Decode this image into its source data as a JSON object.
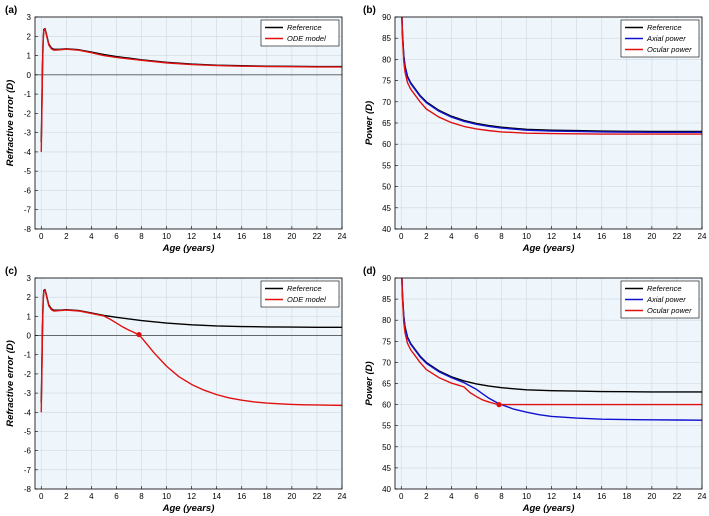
{
  "colors": {
    "plot_bg": "#eef6fc",
    "grid": "#cfd8e0",
    "reference": "#000000",
    "ode_model": "#e01010",
    "axial_power": "#1010d0",
    "ocular_power": "#e01010",
    "marker": "#e01010"
  },
  "chart_data": [
    {
      "id": "a",
      "panel_label": "(a)",
      "type": "line",
      "xlabel": "Age (years)",
      "ylabel": "Refractive error (D)",
      "xlim": [
        -0.5,
        24
      ],
      "ylim": [
        -8,
        3
      ],
      "xticks": [
        0,
        2,
        4,
        6,
        8,
        10,
        12,
        14,
        16,
        18,
        20,
        22,
        24
      ],
      "yticks": [
        -8,
        -7,
        -6,
        -5,
        -4,
        -3,
        -2,
        -1,
        0,
        1,
        2,
        3
      ],
      "grid": true,
      "zero_line": true,
      "legend_position": "top-right",
      "series": [
        {
          "name": "Reference",
          "color": "#000000",
          "x": [
            0,
            0.05,
            0.1,
            0.15,
            0.2,
            0.3,
            0.4,
            0.6,
            0.8,
            1,
            1.5,
            2,
            3,
            4,
            5,
            6,
            8,
            10,
            12,
            14,
            16,
            18,
            20,
            22,
            24
          ],
          "y": [
            -3.5,
            -1.5,
            0.5,
            1.8,
            2.35,
            2.4,
            2.15,
            1.6,
            1.4,
            1.32,
            1.32,
            1.35,
            1.3,
            1.18,
            1.05,
            0.95,
            0.78,
            0.65,
            0.56,
            0.5,
            0.47,
            0.45,
            0.44,
            0.43,
            0.43
          ]
        },
        {
          "name": "ODE model",
          "color": "#e01010",
          "x": [
            0,
            0.05,
            0.1,
            0.15,
            0.2,
            0.3,
            0.4,
            0.6,
            0.8,
            1,
            1.5,
            2,
            3,
            4,
            5,
            6,
            8,
            10,
            12,
            14,
            16,
            18,
            20,
            22,
            24
          ],
          "y": [
            -4,
            -1.8,
            0.4,
            1.7,
            2.3,
            2.38,
            2.1,
            1.55,
            1.35,
            1.28,
            1.3,
            1.33,
            1.28,
            1.15,
            1.0,
            0.9,
            0.75,
            0.62,
            0.53,
            0.48,
            0.45,
            0.43,
            0.42,
            0.41,
            0.41
          ]
        }
      ]
    },
    {
      "id": "b",
      "panel_label": "(b)",
      "type": "line",
      "xlabel": "Age (years)",
      "ylabel": "Power (D)",
      "xlim": [
        -0.5,
        24
      ],
      "ylim": [
        40,
        90
      ],
      "xticks": [
        0,
        2,
        4,
        6,
        8,
        10,
        12,
        14,
        16,
        18,
        20,
        22,
        24
      ],
      "yticks": [
        40,
        45,
        50,
        55,
        60,
        65,
        70,
        75,
        80,
        85,
        90
      ],
      "grid": true,
      "legend_position": "top-right",
      "series": [
        {
          "name": "Reference",
          "color": "#000000",
          "x": [
            0.05,
            0.1,
            0.2,
            0.3,
            0.5,
            0.75,
            1,
            1.5,
            2,
            3,
            4,
            5,
            6,
            7,
            8,
            10,
            12,
            14,
            16,
            18,
            20,
            22,
            24
          ],
          "y": [
            90,
            86,
            81,
            78.5,
            76,
            74.5,
            73.5,
            71.5,
            70,
            68,
            66.6,
            65.6,
            64.9,
            64.4,
            64,
            63.5,
            63.3,
            63.2,
            63.1,
            63.05,
            63,
            63,
            63
          ]
        },
        {
          "name": "Axial power",
          "color": "#1010d0",
          "x": [
            0.05,
            0.1,
            0.2,
            0.3,
            0.5,
            0.75,
            1,
            1.5,
            2,
            3,
            4,
            5,
            6,
            7,
            8,
            10,
            12,
            14,
            16,
            18,
            20,
            22,
            24
          ],
          "y": [
            90,
            85.8,
            80.8,
            78.3,
            75.8,
            74.3,
            73.3,
            71.3,
            69.8,
            67.8,
            66.4,
            65.4,
            64.7,
            64.2,
            63.8,
            63.3,
            63.1,
            63,
            62.9,
            62.85,
            62.8,
            62.8,
            62.8
          ]
        },
        {
          "name": "Ocular power",
          "color": "#e01010",
          "x": [
            0.05,
            0.1,
            0.2,
            0.3,
            0.5,
            0.75,
            1,
            1.5,
            2,
            3,
            4,
            5,
            6,
            7,
            8,
            10,
            12,
            14,
            16,
            18,
            20,
            22,
            24
          ],
          "y": [
            90,
            85,
            79.5,
            77,
            74.5,
            73,
            72,
            70,
            68.3,
            66.4,
            65.1,
            64.2,
            63.6,
            63.2,
            62.9,
            62.6,
            62.5,
            62.45,
            62.4,
            62.4,
            62.4,
            62.4,
            62.4
          ]
        }
      ]
    },
    {
      "id": "c",
      "panel_label": "(c)",
      "type": "line",
      "xlabel": "Age (years)",
      "ylabel": "Refractive error (D)",
      "xlim": [
        -0.5,
        24
      ],
      "ylim": [
        -8,
        3
      ],
      "xticks": [
        0,
        2,
        4,
        6,
        8,
        10,
        12,
        14,
        16,
        18,
        20,
        22,
        24
      ],
      "yticks": [
        -8,
        -7,
        -6,
        -5,
        -4,
        -3,
        -2,
        -1,
        0,
        1,
        2,
        3
      ],
      "grid": true,
      "zero_line": true,
      "legend_position": "top-right",
      "series": [
        {
          "name": "Reference",
          "color": "#000000",
          "x": [
            0,
            0.05,
            0.1,
            0.15,
            0.2,
            0.3,
            0.4,
            0.6,
            0.8,
            1,
            1.5,
            2,
            3,
            4,
            5,
            6,
            8,
            10,
            12,
            14,
            16,
            18,
            20,
            22,
            24
          ],
          "y": [
            -3.5,
            -1.5,
            0.5,
            1.8,
            2.35,
            2.4,
            2.15,
            1.6,
            1.4,
            1.32,
            1.32,
            1.35,
            1.3,
            1.18,
            1.05,
            0.95,
            0.78,
            0.65,
            0.56,
            0.5,
            0.47,
            0.45,
            0.44,
            0.43,
            0.43
          ]
        },
        {
          "name": "ODE model",
          "color": "#e01010",
          "x": [
            0,
            0.05,
            0.1,
            0.15,
            0.2,
            0.3,
            0.4,
            0.6,
            0.8,
            1,
            1.5,
            2,
            3,
            4,
            5,
            5.5,
            6,
            6.5,
            7,
            7.5,
            7.8,
            8.5,
            9,
            10,
            11,
            12,
            13,
            14,
            15,
            16,
            17,
            18,
            19,
            20,
            21,
            22,
            23,
            24
          ],
          "y": [
            -4,
            -1.8,
            0.4,
            1.7,
            2.3,
            2.38,
            2.1,
            1.55,
            1.35,
            1.28,
            1.3,
            1.33,
            1.28,
            1.15,
            1.02,
            0.85,
            0.65,
            0.45,
            0.28,
            0.13,
            0.05,
            -0.5,
            -0.9,
            -1.6,
            -2.15,
            -2.55,
            -2.85,
            -3.08,
            -3.25,
            -3.37,
            -3.46,
            -3.52,
            -3.56,
            -3.59,
            -3.61,
            -3.62,
            -3.63,
            -3.64
          ]
        }
      ],
      "markers": [
        {
          "x": 7.8,
          "y": 0.05
        }
      ]
    },
    {
      "id": "d",
      "panel_label": "(d)",
      "type": "line",
      "xlabel": "Age (years)",
      "ylabel": "Power (D)",
      "xlim": [
        -0.5,
        24
      ],
      "ylim": [
        40,
        90
      ],
      "xticks": [
        0,
        2,
        4,
        6,
        8,
        10,
        12,
        14,
        16,
        18,
        20,
        22,
        24
      ],
      "yticks": [
        40,
        45,
        50,
        55,
        60,
        65,
        70,
        75,
        80,
        85,
        90
      ],
      "grid": true,
      "legend_position": "top-right",
      "series": [
        {
          "name": "Reference",
          "color": "#000000",
          "x": [
            0.05,
            0.1,
            0.2,
            0.3,
            0.5,
            0.75,
            1,
            1.5,
            2,
            3,
            4,
            5,
            6,
            7,
            8,
            10,
            12,
            14,
            16,
            18,
            20,
            22,
            24
          ],
          "y": [
            90,
            86,
            81,
            78.5,
            76,
            74.5,
            73.5,
            71.5,
            70,
            68,
            66.6,
            65.6,
            64.9,
            64.4,
            64,
            63.5,
            63.3,
            63.2,
            63.1,
            63.05,
            63,
            63,
            63
          ]
        },
        {
          "name": "Axial power",
          "color": "#1010d0",
          "x": [
            0.05,
            0.1,
            0.2,
            0.3,
            0.5,
            0.75,
            1,
            1.5,
            2,
            3,
            4,
            5,
            6,
            7,
            7.8,
            9,
            10,
            11,
            12,
            14,
            16,
            18,
            20,
            22,
            24
          ],
          "y": [
            90,
            85.8,
            80.8,
            78.3,
            75.8,
            74.3,
            73.3,
            71.3,
            69.8,
            67.8,
            66.4,
            65.2,
            63.6,
            61.5,
            60.2,
            58.9,
            58.2,
            57.6,
            57.2,
            56.8,
            56.55,
            56.45,
            56.4,
            56.35,
            56.3
          ]
        },
        {
          "name": "Ocular power",
          "color": "#e01010",
          "x": [
            0.05,
            0.1,
            0.2,
            0.3,
            0.5,
            0.75,
            1,
            1.5,
            2,
            3,
            4,
            5,
            5.5,
            6,
            6.5,
            7,
            7.5,
            7.8,
            24
          ],
          "y": [
            90,
            85,
            79.5,
            77,
            74.5,
            73,
            72,
            70,
            68.3,
            66.4,
            65.1,
            64.2,
            62.8,
            61.9,
            61.1,
            60.6,
            60.2,
            60,
            60
          ]
        }
      ],
      "markers": [
        {
          "x": 7.8,
          "y": 60
        }
      ]
    }
  ]
}
